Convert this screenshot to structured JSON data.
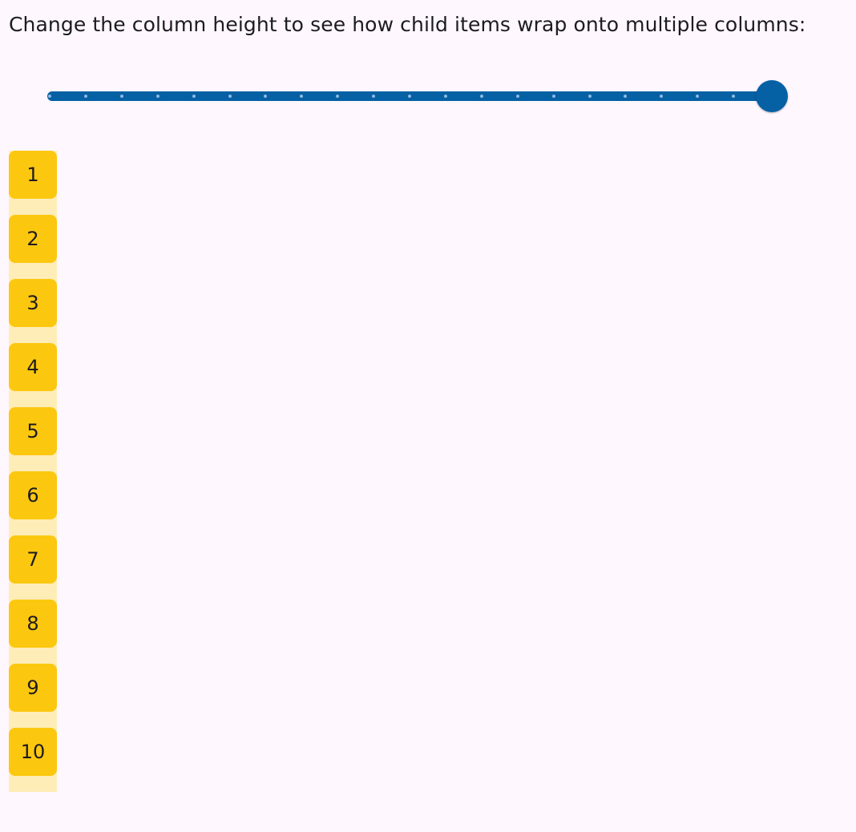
{
  "instruction": "Change the column height to see how child items wrap onto multiple columns:",
  "slider": {
    "value_fraction": 1.0,
    "divisions": 20,
    "color": "#0561a4"
  },
  "column": {
    "background": "#ffedb7",
    "item_color": "#fcc70f",
    "items": [
      "1",
      "2",
      "3",
      "4",
      "5",
      "6",
      "7",
      "8",
      "9",
      "10"
    ]
  }
}
